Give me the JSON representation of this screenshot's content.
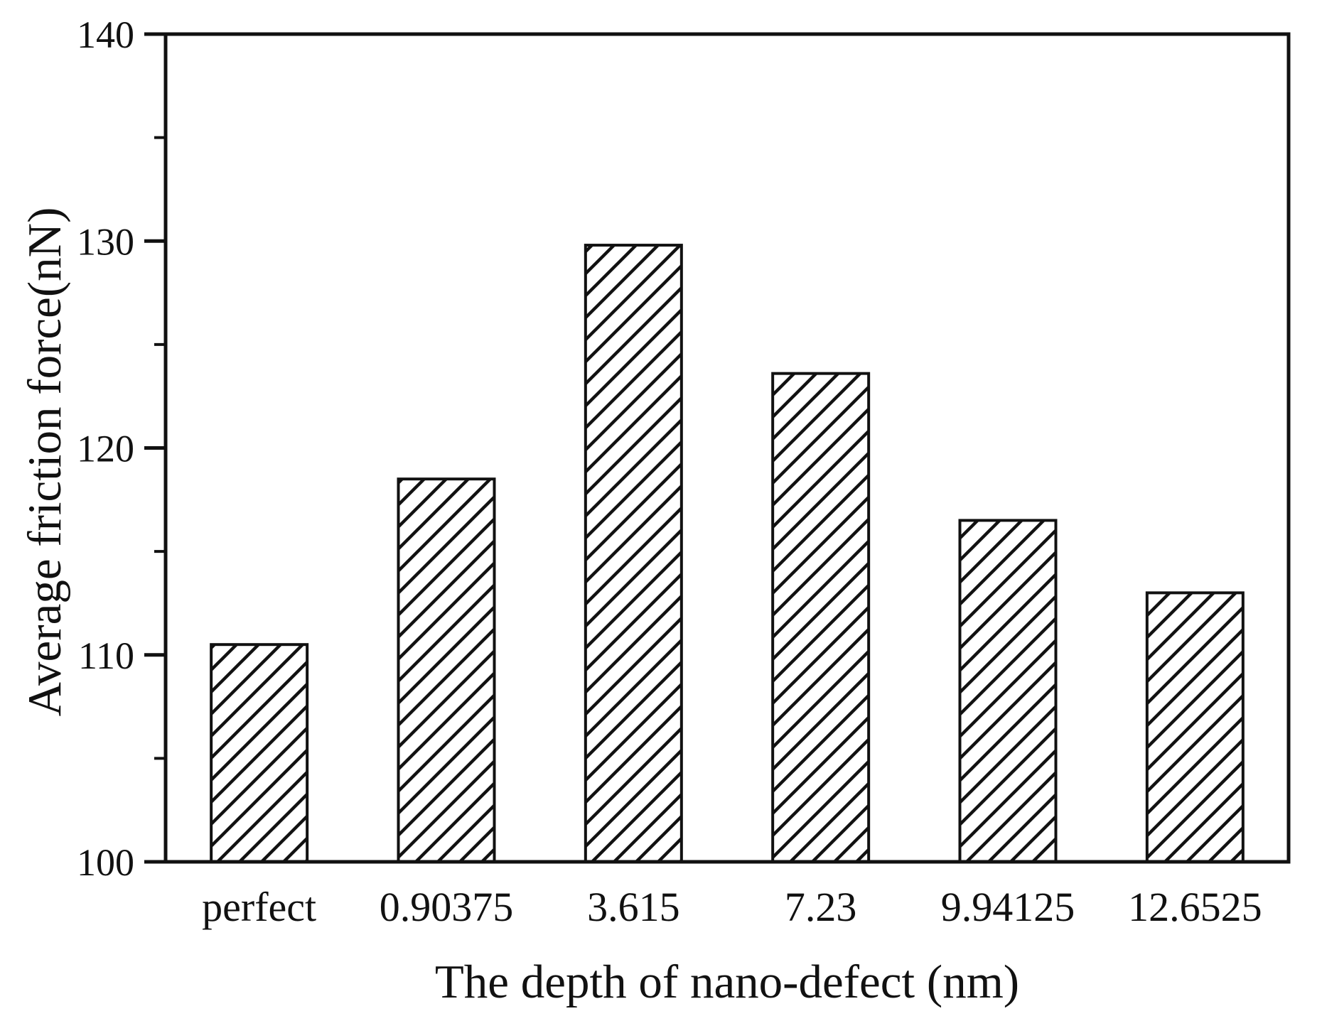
{
  "figure": {
    "kind": "scientific-bar-chart",
    "background": "#ffffff"
  },
  "chart_data": {
    "type": "bar",
    "title": "",
    "categories": [
      "perfect",
      "0.90375",
      "3.615",
      "7.23",
      "9.94125",
      "12.6525"
    ],
    "values": [
      110.5,
      118.5,
      129.8,
      123.6,
      116.5,
      113.0
    ],
    "xlabel": "The depth of nano-defect (nm)",
    "ylabel": "Average friction force(nN)",
    "ylim": [
      100,
      140
    ],
    "yticks": [
      100,
      110,
      120,
      130,
      140
    ],
    "ytick_labels": [
      "100",
      "110",
      "120",
      "130",
      "140"
    ],
    "minor_ytick_step": 5,
    "grid": false,
    "legend": false,
    "bar_style": {
      "fill": "hatch-diagonal-forward",
      "hatch_spacing_px": 31,
      "stroke": "#111111"
    },
    "colors": {
      "ink": "#111111",
      "background": "#ffffff"
    }
  }
}
